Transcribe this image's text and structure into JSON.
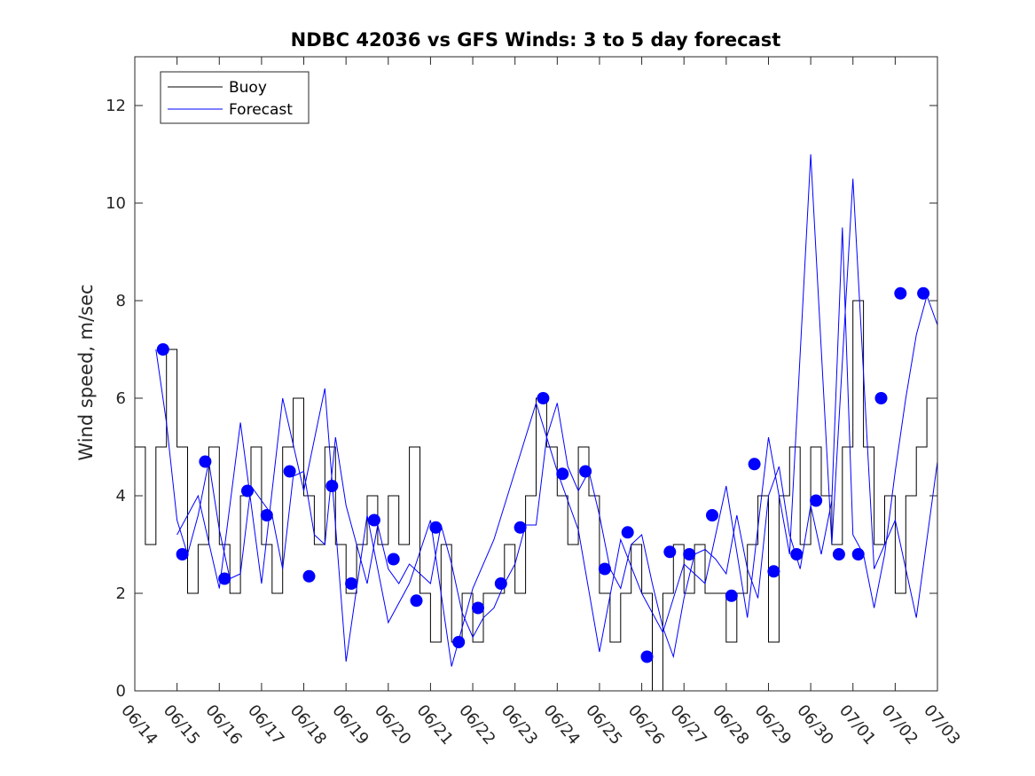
{
  "chart_data": {
    "type": "line",
    "title": "NDBC 42036 vs GFS Winds: 3 to 5 day forecast",
    "xlabel": "",
    "ylabel": "Wind speed, m/sec",
    "xlim": [
      "06/14",
      "07/03"
    ],
    "ylim": [
      0,
      13
    ],
    "yticks": [
      0,
      2,
      4,
      6,
      8,
      10,
      12
    ],
    "xticks": [
      "06/14",
      "06/15",
      "06/16",
      "06/17",
      "06/18",
      "06/19",
      "06/20",
      "06/21",
      "06/22",
      "06/23",
      "06/24",
      "06/25",
      "06/26",
      "06/27",
      "06/28",
      "06/29",
      "06/30",
      "07/01",
      "07/02",
      "07/03"
    ],
    "grid": false,
    "legend": {
      "position": "top-left",
      "entries": [
        "Buoy",
        "Forecast"
      ]
    },
    "colors": {
      "buoy": "#000000",
      "forecast": "#0000ff",
      "markers": "#0000ff"
    },
    "series": [
      {
        "name": "Buoy",
        "x": [
          "06/14 00:00",
          "06/14 06:00",
          "06/14 12:00",
          "06/14 18:00",
          "06/15 00:00",
          "06/15 06:00",
          "06/15 12:00",
          "06/15 18:00",
          "06/16 00:00",
          "06/16 06:00",
          "06/16 12:00",
          "06/16 18:00",
          "06/17 00:00",
          "06/17 06:00",
          "06/17 12:00",
          "06/17 18:00",
          "06/18 00:00",
          "06/18 06:00",
          "06/18 12:00",
          "06/18 18:00",
          "06/19 00:00",
          "06/19 06:00",
          "06/19 12:00",
          "06/19 18:00",
          "06/20 00:00",
          "06/20 06:00",
          "06/20 12:00",
          "06/20 18:00",
          "06/21 00:00",
          "06/21 06:00",
          "06/21 12:00",
          "06/21 18:00",
          "06/22 00:00",
          "06/22 06:00",
          "06/22 12:00",
          "06/22 18:00",
          "06/23 00:00",
          "06/23 06:00",
          "06/23 12:00",
          "06/23 18:00",
          "06/24 00:00",
          "06/24 06:00",
          "06/24 12:00",
          "06/24 18:00",
          "06/25 00:00",
          "06/25 06:00",
          "06/25 12:00",
          "06/25 18:00",
          "06/26 00:00",
          "06/26 06:00",
          "06/26 12:00",
          "06/26 18:00",
          "06/27 00:00",
          "06/27 06:00",
          "06/27 12:00",
          "06/27 18:00",
          "06/28 00:00",
          "06/28 06:00",
          "06/28 12:00",
          "06/28 18:00",
          "06/29 00:00",
          "06/29 06:00",
          "06/29 12:00",
          "06/29 18:00",
          "06/30 00:00",
          "06/30 06:00",
          "06/30 12:00",
          "06/30 18:00",
          "07/01 00:00",
          "07/01 06:00",
          "07/01 12:00",
          "07/01 18:00",
          "07/02 00:00",
          "07/02 06:00",
          "07/02 12:00",
          "07/02 18:00",
          "07/03 00:00"
        ],
        "values": [
          5,
          3,
          5,
          7,
          5,
          2,
          3,
          5,
          3,
          2,
          4,
          5,
          3,
          2,
          5,
          6,
          4,
          3,
          5,
          3,
          2,
          3,
          4,
          3,
          4,
          3,
          5,
          2,
          1,
          3,
          1,
          2,
          1,
          2,
          2,
          3,
          2,
          4,
          6,
          5,
          4,
          3,
          5,
          4,
          2,
          1,
          2,
          3,
          2,
          0,
          2,
          3,
          2,
          3,
          2,
          2,
          1,
          2,
          3,
          4,
          1,
          4,
          5,
          3,
          5,
          4,
          3,
          5,
          8,
          5,
          3,
          4,
          2,
          4,
          5,
          6,
          5
        ]
      },
      {
        "name": "Forecast",
        "x": [
          "06/14 12:00",
          "06/14 18:00",
          "06/15 00:00",
          "06/15 06:00",
          "06/15 12:00",
          "06/15 18:00",
          "06/16 00:00",
          "06/16 06:00",
          "06/16 12:00",
          "06/16 18:00",
          "06/17 00:00",
          "06/17 06:00",
          "06/17 12:00",
          "06/17 18:00",
          "06/18 00:00",
          "06/18 06:00",
          "06/18 12:00",
          "06/18 18:00",
          "06/19 00:00",
          "06/19 06:00",
          "06/19 12:00",
          "06/19 18:00",
          "06/20 00:00",
          "06/20 06:00",
          "06/20 12:00",
          "06/20 18:00",
          "06/21 00:00",
          "06/21 06:00",
          "06/21 12:00",
          "06/21 18:00",
          "06/22 00:00",
          "06/22 06:00",
          "06/22 12:00",
          "06/22 18:00",
          "06/23 00:00",
          "06/23 06:00",
          "06/23 12:00",
          "06/23 18:00",
          "06/24 00:00",
          "06/24 06:00",
          "06/24 12:00",
          "06/24 18:00",
          "06/25 00:00",
          "06/25 06:00",
          "06/25 12:00",
          "06/25 18:00",
          "06/26 00:00",
          "06/26 06:00",
          "06/26 12:00",
          "06/26 18:00",
          "06/27 00:00",
          "06/27 06:00",
          "06/27 12:00",
          "06/27 18:00",
          "06/28 00:00",
          "06/28 06:00",
          "06/28 12:00",
          "06/28 18:00",
          "06/29 00:00",
          "06/29 06:00",
          "06/29 12:00",
          "06/29 18:00",
          "06/30 00:00",
          "06/30 06:00",
          "06/30 12:00",
          "06/30 18:00",
          "07/01 00:00",
          "07/01 06:00",
          "07/01 12:00",
          "07/01 18:00",
          "07/02 00:00",
          "07/02 06:00",
          "07/02 12:00",
          "07/02 18:00",
          "07/03 00:00"
        ],
        "values": [
          7,
          5.5,
          3.5,
          2.8,
          3.6,
          4.7,
          3.3,
          2.3,
          2.4,
          4.2,
          3.9,
          3.6,
          2.5,
          4.4,
          4.5,
          3.2,
          3,
          5.2,
          3.8,
          3,
          2.2,
          3.4,
          2.5,
          2.2,
          2.6,
          2.4,
          2.2,
          3.4,
          2.6,
          1.6,
          1.1,
          1.5,
          1.7,
          2.2,
          2.6,
          3.4,
          3.4,
          5.2,
          5.9,
          4.6,
          4.1,
          4.5,
          3.6,
          2.5,
          2.1,
          3,
          3.2,
          2.2,
          1.3,
          0.7,
          1.9,
          2.8,
          2.9,
          2.7,
          2.4,
          3.6,
          2.5,
          1.9,
          4,
          4.6,
          3.2,
          2.5,
          3.8,
          2.8,
          3.9,
          9.5,
          3.2,
          2.8,
          1.7,
          2.8,
          4.5,
          6,
          7.3,
          8.1,
          7.5
        ]
      },
      {
        "name": "Forecast",
        "x": [
          "06/15 00:00",
          "06/15 12:00",
          "06/16 00:00",
          "06/16 12:00",
          "06/17 00:00",
          "06/17 12:00",
          "06/18 00:00",
          "06/18 12:00",
          "06/19 00:00",
          "06/19 12:00",
          "06/20 00:00",
          "06/20 12:00",
          "06/21 00:00",
          "06/21 12:00",
          "06/22 00:00",
          "06/22 12:00",
          "06/23 00:00",
          "06/23 12:00",
          "06/24 00:00",
          "06/24 12:00",
          "06/25 00:00",
          "06/25 12:00",
          "06/26 00:00",
          "06/26 12:00",
          "06/27 00:00",
          "06/27 12:00",
          "06/28 00:00",
          "06/28 12:00",
          "06/29 00:00",
          "06/29 12:00",
          "06/30 00:00",
          "06/30 12:00",
          "07/01 00:00",
          "07/01 12:00",
          "07/02 00:00",
          "07/02 12:00",
          "07/03 00:00"
        ],
        "values": [
          3.2,
          4,
          2.1,
          5.5,
          2.2,
          6,
          4.1,
          6.2,
          0.6,
          3.6,
          1.4,
          2.2,
          3.5,
          0.5,
          2.1,
          3.1,
          4.5,
          5.9,
          4.5,
          3.3,
          0.8,
          3.1,
          2,
          1.2,
          2.6,
          2.2,
          4.2,
          1.5,
          5.2,
          2.8,
          11,
          3,
          10.5,
          2.5,
          3.5,
          1.5,
          4.7
        ]
      }
    ],
    "markers": {
      "name": "",
      "x": [
        "06/14 16:00",
        "06/15 03:00",
        "06/15 16:00",
        "06/16 03:00",
        "06/16 16:00",
        "06/17 03:00",
        "06/17 16:00",
        "06/18 03:00",
        "06/18 16:00",
        "06/19 03:00",
        "06/19 16:00",
        "06/20 03:00",
        "06/20 16:00",
        "06/21 03:00",
        "06/21 16:00",
        "06/22 03:00",
        "06/22 16:00",
        "06/23 03:00",
        "06/23 16:00",
        "06/24 03:00",
        "06/24 16:00",
        "06/25 03:00",
        "06/25 16:00",
        "06/26 03:00",
        "06/26 16:00",
        "06/27 03:00",
        "06/27 16:00",
        "06/28 03:00",
        "06/28 16:00",
        "06/29 03:00",
        "06/29 16:00",
        "06/30 03:00",
        "06/30 16:00",
        "07/01 03:00",
        "07/01 16:00",
        "07/02 03:00",
        "07/02 16:00"
      ],
      "values": [
        7,
        2.8,
        4.7,
        2.3,
        4.1,
        3.6,
        4.5,
        2.35,
        4.2,
        2.2,
        3.5,
        2.7,
        1.85,
        3.35,
        1,
        1.7,
        2.2,
        3.35,
        6,
        4.45,
        4.5,
        2.5,
        3.25,
        0.7,
        2.85,
        2.8,
        3.6,
        1.95,
        4.65,
        2.45,
        2.8,
        3.9,
        2.8,
        2.8,
        6,
        8.15,
        8.15
      ]
    }
  }
}
